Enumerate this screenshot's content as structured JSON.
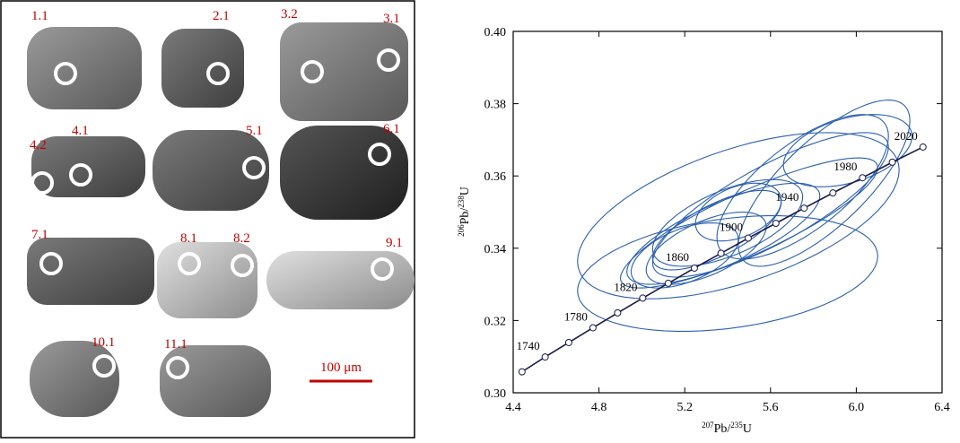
{
  "zircon_panel": {
    "spot_labels": [
      "1.1",
      "2.1",
      "3.2",
      "3.1",
      "4.2",
      "4.1",
      "5.1",
      "6.1",
      "7.1",
      "8.1",
      "8.2",
      "9.1",
      "10.1",
      "11.1"
    ],
    "scale_bar": "100 μm"
  },
  "chart_data": {
    "type": "concordia",
    "xlabel": [
      "207",
      "Pb/",
      "235",
      "U"
    ],
    "ylabel": [
      "206",
      "Pb/",
      "238",
      "U"
    ],
    "xlim": [
      4.4,
      6.4
    ],
    "ylim": [
      0.3,
      0.4
    ],
    "xticks": [
      4.4,
      4.8,
      5.2,
      5.6,
      {
        "value": 6,
        "label": "6.0"
      },
      6.4
    ],
    "yticks": [
      {
        "value": 0.3,
        "label": "0.30"
      },
      0.32,
      0.34,
      0.36,
      0.38,
      {
        "value": 0.4,
        "label": "0.40"
      }
    ],
    "concordia": {
      "color": "#1a1a4a",
      "x": [
        4.441,
        4.549,
        4.659,
        4.772,
        4.887,
        5.004,
        5.123,
        5.245,
        5.369,
        5.496,
        5.625,
        5.757,
        5.891,
        6.029,
        6.168,
        6.311
      ],
      "y": [
        0.3058,
        0.3099,
        0.3139,
        0.318,
        0.3221,
        0.3262,
        0.3303,
        0.3345,
        0.3386,
        0.3428,
        0.3469,
        0.3511,
        0.3553,
        0.3595,
        0.3638,
        0.368
      ],
      "point_labels": [
        null,
        1740,
        null,
        1780,
        null,
        1820,
        null,
        1860,
        null,
        1900,
        null,
        1940,
        null,
        1980,
        null,
        2020
      ]
    },
    "ellipses": {
      "color": "#2b5fb0",
      "items": [
        {
          "x": 5.45,
          "y": 0.349,
          "sx": 0.75,
          "sy": 0.023,
          "rho": 0.55
        },
        {
          "x": 5.4,
          "y": 0.333,
          "sx": 0.7,
          "sy": 0.016,
          "rho": 0.3
        },
        {
          "x": 5.85,
          "y": 0.358,
          "sx": 0.4,
          "sy": 0.023,
          "rho": 0.75
        },
        {
          "x": 5.96,
          "y": 0.367,
          "sx": 0.3,
          "sy": 0.01,
          "rho": 0.4
        },
        {
          "x": 5.75,
          "y": 0.357,
          "sx": 0.4,
          "sy": 0.02,
          "rho": 0.7
        },
        {
          "x": 5.4,
          "y": 0.347,
          "sx": 0.35,
          "sy": 0.012,
          "rho": 0.6
        },
        {
          "x": 5.35,
          "y": 0.345,
          "sx": 0.3,
          "sy": 0.011,
          "rho": 0.7
        },
        {
          "x": 5.45,
          "y": 0.35,
          "sx": 0.2,
          "sy": 0.008,
          "rho": 0.4
        },
        {
          "x": 5.38,
          "y": 0.344,
          "sx": 0.45,
          "sy": 0.014,
          "rho": 0.75
        },
        {
          "x": 5.3,
          "y": 0.34,
          "sx": 0.28,
          "sy": 0.01,
          "rho": 0.6
        },
        {
          "x": 5.6,
          "y": 0.352,
          "sx": 0.55,
          "sy": 0.02,
          "rho": 0.8
        },
        {
          "x": 5.2,
          "y": 0.338,
          "sx": 0.25,
          "sy": 0.009,
          "rho": 0.5
        },
        {
          "x": 5.5,
          "y": 0.347,
          "sx": 0.6,
          "sy": 0.018,
          "rho": 0.85
        }
      ]
    }
  }
}
